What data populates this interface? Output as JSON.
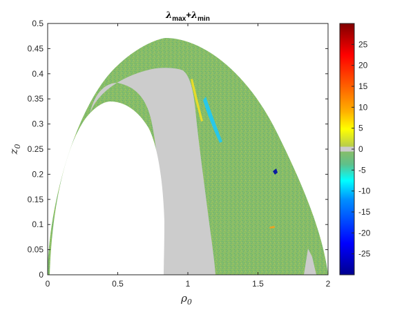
{
  "chart_data": {
    "type": "heatmap",
    "title": {
      "symbol1": "λ",
      "sub1": "max",
      "plus": "+",
      "symbol2": "λ",
      "sub2": "min"
    },
    "xlabel": {
      "symbol": "ρ",
      "sub": "0"
    },
    "ylabel": {
      "symbol": "z",
      "sub": "0"
    },
    "xlim": [
      0,
      2
    ],
    "ylim": [
      0,
      0.5
    ],
    "xticks": [
      0,
      0.5,
      1,
      1.5,
      2
    ],
    "xtick_labels": [
      "0",
      "0.5",
      "1",
      "1.5",
      "2"
    ],
    "yticks": [
      0,
      0.05,
      0.1,
      0.15,
      0.2,
      0.25,
      0.3,
      0.35,
      0.4,
      0.45,
      0.5
    ],
    "ytick_labels": [
      "0",
      "0.05",
      "0.1",
      "0.15",
      "0.2",
      "0.25",
      "0.3",
      "0.35",
      "0.4",
      "0.45",
      "0.5"
    ],
    "grid": false,
    "colorbar": {
      "range": [
        -30,
        30
      ],
      "ticks": [
        -25,
        -20,
        -15,
        -10,
        -5,
        0,
        5,
        10,
        15,
        20,
        25
      ],
      "tick_labels": [
        "-25",
        "-20",
        "-15",
        "-10",
        "-5",
        "0",
        "5",
        "10",
        "15",
        "20",
        "25"
      ],
      "zero_band_color": "#cccccc",
      "colormap": "jet-with-gray-zero"
    },
    "colors": {
      "dominant": "#86bd6a",
      "zero": "#cccccc",
      "background": "#ffffff"
    },
    "domain": {
      "outer_arch": {
        "rho_min": 0,
        "rho_max": 2,
        "z_peak": 0.47,
        "rho_peak": 0.83
      },
      "inner_arch": {
        "rho_min": 0.05,
        "rho_max": 0.85,
        "z_peak": 0.345,
        "rho_peak": 0.45
      }
    }
  }
}
